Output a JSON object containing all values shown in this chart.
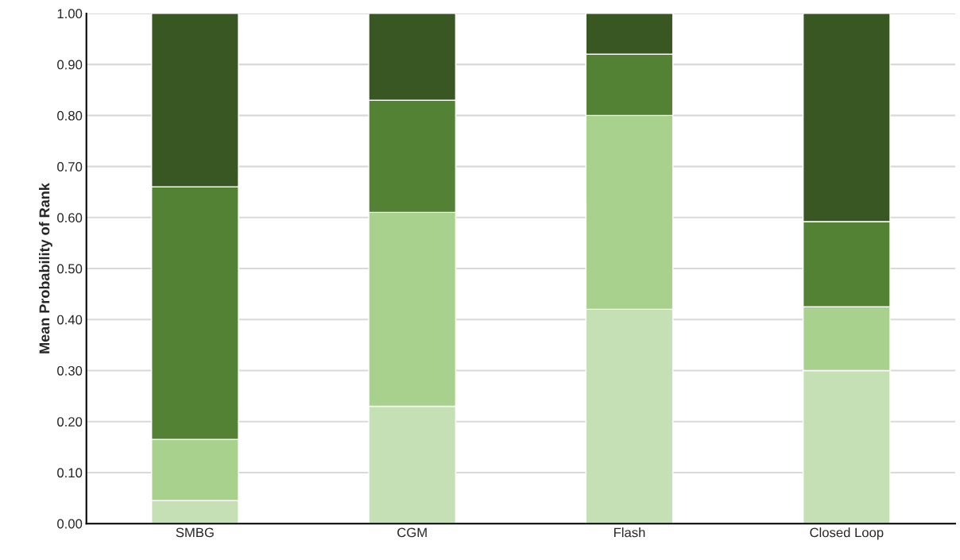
{
  "chart_data": {
    "type": "bar",
    "stacked": true,
    "ylabel": "Mean Probability of Rank",
    "categories": [
      "SMBG",
      "CGM",
      "Flash",
      "Closed Loop"
    ],
    "series": [
      {
        "color": "#c5e0b4",
        "values": [
          0.045,
          0.23,
          0.42,
          0.3
        ]
      },
      {
        "color": "#a9d18e",
        "values": [
          0.12,
          0.38,
          0.38,
          0.125
        ]
      },
      {
        "color": "#548235",
        "values": [
          0.495,
          0.22,
          0.12,
          0.167
        ]
      },
      {
        "color": "#385723",
        "values": [
          0.34,
          0.17,
          0.08,
          0.408
        ]
      }
    ],
    "ylim": [
      0,
      1
    ],
    "yticks": [
      {
        "value": 0,
        "label": "0.00"
      },
      {
        "value": 0.1,
        "label": "0.10"
      },
      {
        "value": 0.2,
        "label": "0.20"
      },
      {
        "value": 0.3,
        "label": "0.30"
      },
      {
        "value": 0.4,
        "label": "0.40"
      },
      {
        "value": 0.5,
        "label": "0.50"
      },
      {
        "value": 0.6,
        "label": "0.60"
      },
      {
        "value": 0.7,
        "label": "0.70"
      },
      {
        "value": 0.8,
        "label": "0.80"
      },
      {
        "value": 0.9,
        "label": "0.90"
      },
      {
        "value": 1.0,
        "label": "1.00"
      }
    ],
    "grid": "y",
    "legend": false
  }
}
